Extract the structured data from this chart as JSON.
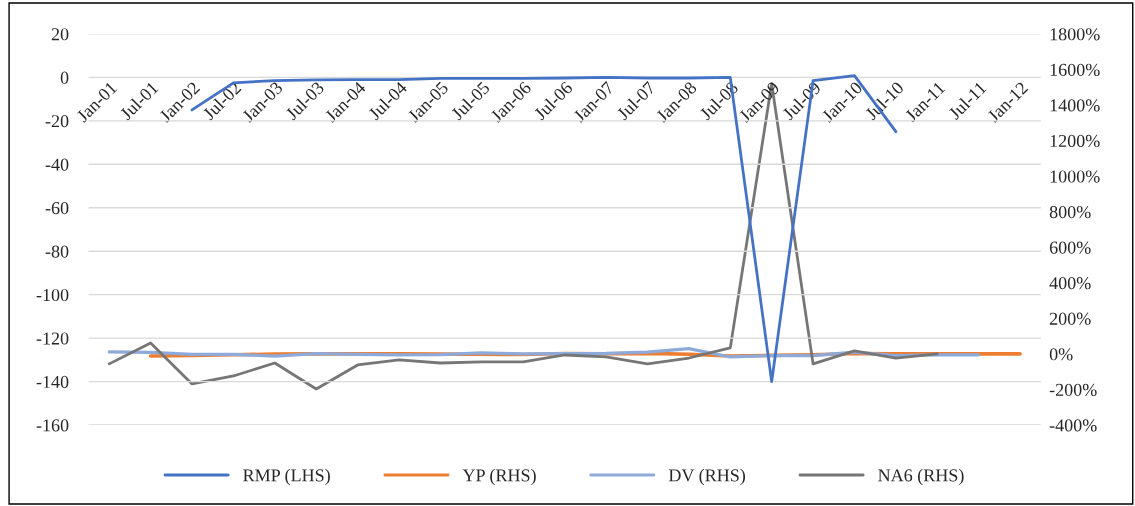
{
  "chart_data": {
    "type": "line",
    "categories": [
      "Jan-01",
      "Jul-01",
      "Jan-02",
      "Jul-02",
      "Jan-03",
      "Jul-03",
      "Jan-04",
      "Jul-04",
      "Jan-05",
      "Jul-05",
      "Jan-06",
      "Jul-06",
      "Jan-07",
      "Jul-07",
      "Jan-08",
      "Jul-08",
      "Jan-09",
      "Jul-09",
      "Jan-10",
      "Jul-10",
      "Jan-11",
      "Jul-11",
      "Jan-12"
    ],
    "series": [
      {
        "name": "RMP (LHS)",
        "color": "#4472c4",
        "values": [
          null,
          null,
          -15,
          -2.5,
          -1.5,
          -1.2,
          -1,
          -1,
          -0.5,
          -0.5,
          -0.5,
          -0.3,
          0,
          -0.3,
          -0.3,
          0,
          -140,
          -1.5,
          0.8,
          -25,
          null,
          null,
          null
        ]
      },
      {
        "name": "YP (RHS)",
        "color": "#ed7d31",
        "axis": "y2",
        "values": [
          null,
          -12,
          -8,
          -5,
          -1,
          0,
          0,
          0,
          -1,
          -2,
          -3,
          2,
          1,
          3,
          -2,
          -12,
          -8,
          -5,
          2,
          1,
          0,
          0,
          0
        ]
      },
      {
        "name": "DV (RHS)",
        "color": "#8eaadb",
        "axis": "y2",
        "values": [
          11,
          9,
          -3,
          -3,
          -12,
          2,
          -3,
          -5,
          -4,
          6,
          0,
          2,
          3,
          10,
          30,
          -17,
          -10,
          -10,
          10,
          -10,
          -5,
          -5,
          null
        ]
      },
      {
        "name": "NA6 (RHS)",
        "color": "#767676",
        "axis": "y2",
        "values": [
          -56,
          62,
          -169,
          -124,
          -51,
          -197,
          -62,
          -34,
          -51,
          -45,
          -45,
          -6,
          -17,
          -56,
          -23,
          34,
          1520,
          -56,
          17,
          -23,
          0,
          null,
          null
        ]
      }
    ],
    "ylim": [
      -160,
      20
    ],
    "yticks": [
      -160,
      -140,
      -120,
      -100,
      -80,
      -60,
      -40,
      -20,
      0,
      20
    ],
    "y2lim": [
      -400,
      1800
    ],
    "y2ticks": [
      {
        "value": -400,
        "label": "-400%"
      },
      {
        "value": -200,
        "label": "-200%"
      },
      {
        "value": 0,
        "label": "0%"
      },
      {
        "value": 200,
        "label": "200%"
      },
      {
        "value": 400,
        "label": "400%"
      },
      {
        "value": 600,
        "label": "600%"
      },
      {
        "value": 800,
        "label": "800%"
      },
      {
        "value": 1000,
        "label": "1000%"
      },
      {
        "value": 1200,
        "label": "1200%"
      },
      {
        "value": 1400,
        "label": "1400%"
      },
      {
        "value": 1600,
        "label": "1600%"
      },
      {
        "value": 1800,
        "label": "1800%"
      }
    ],
    "grid": "y",
    "legend": "bottom",
    "marker": "none",
    "line_style": "solid"
  }
}
